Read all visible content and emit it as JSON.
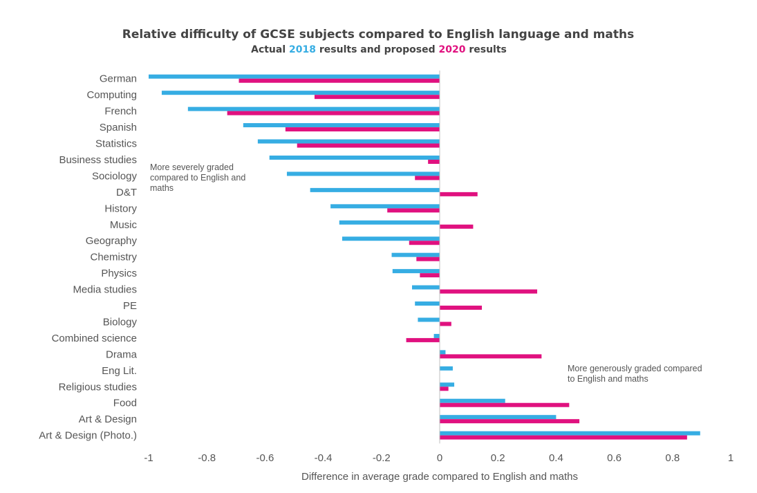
{
  "chart_data": {
    "type": "bar",
    "orientation": "horizontal",
    "title": "Relative difficulty of GCSE subjects compared to English language and maths",
    "subtitle": {
      "prefix": "Actual ",
      "year_a": "2018",
      "middle": " results and proposed ",
      "year_b": "2020",
      "suffix": " results"
    },
    "xlabel": "Difference in average grade compared to English and maths",
    "ylabel": "",
    "xlim": [
      -1,
      1
    ],
    "x_ticks": [
      -1,
      -0.8,
      -0.6,
      -0.4,
      -0.2,
      0,
      0.2,
      0.4,
      0.6,
      0.8,
      1
    ],
    "x_tick_labels": [
      "-1",
      "-0.8",
      "-0.6",
      "-0.4",
      "-0.2",
      "0",
      "0.2",
      "0.4",
      "0.6",
      "0.8",
      "1"
    ],
    "grid": false,
    "categories": [
      "German",
      "Computing",
      "French",
      "Spanish",
      "Statistics",
      "Business studies",
      "Sociology",
      "D&T",
      "History",
      "Music",
      "Geography",
      "Chemistry",
      "Physics",
      "Media studies",
      "PE",
      "Biology",
      "Combined science",
      "Drama",
      "Eng Lit.",
      "Religious studies",
      "Food",
      "Art & Design",
      "Art & Design (Photo.)"
    ],
    "series": [
      {
        "name": "2018",
        "color": "#36ade3",
        "values": [
          -1.0,
          -0.955,
          -0.865,
          -0.675,
          -0.625,
          -0.585,
          -0.525,
          -0.445,
          -0.375,
          -0.345,
          -0.335,
          -0.165,
          -0.162,
          -0.095,
          -0.085,
          -0.075,
          -0.02,
          0.02,
          0.045,
          0.05,
          0.225,
          0.4,
          0.895
        ]
      },
      {
        "name": "2020",
        "color": "#e0117f",
        "values": [
          -0.69,
          -0.43,
          -0.73,
          -0.53,
          -0.49,
          -0.04,
          -0.085,
          0.13,
          -0.18,
          0.115,
          -0.105,
          -0.08,
          -0.068,
          0.335,
          0.145,
          0.04,
          -0.115,
          0.35,
          0.0,
          0.03,
          0.445,
          0.48,
          0.85
        ]
      }
    ],
    "annotations": [
      {
        "id": "left",
        "lines": [
          "More severely graded",
          "compared to English and",
          "maths"
        ]
      },
      {
        "id": "right",
        "lines": [
          "More generously graded compared",
          "to English and maths"
        ]
      }
    ]
  }
}
